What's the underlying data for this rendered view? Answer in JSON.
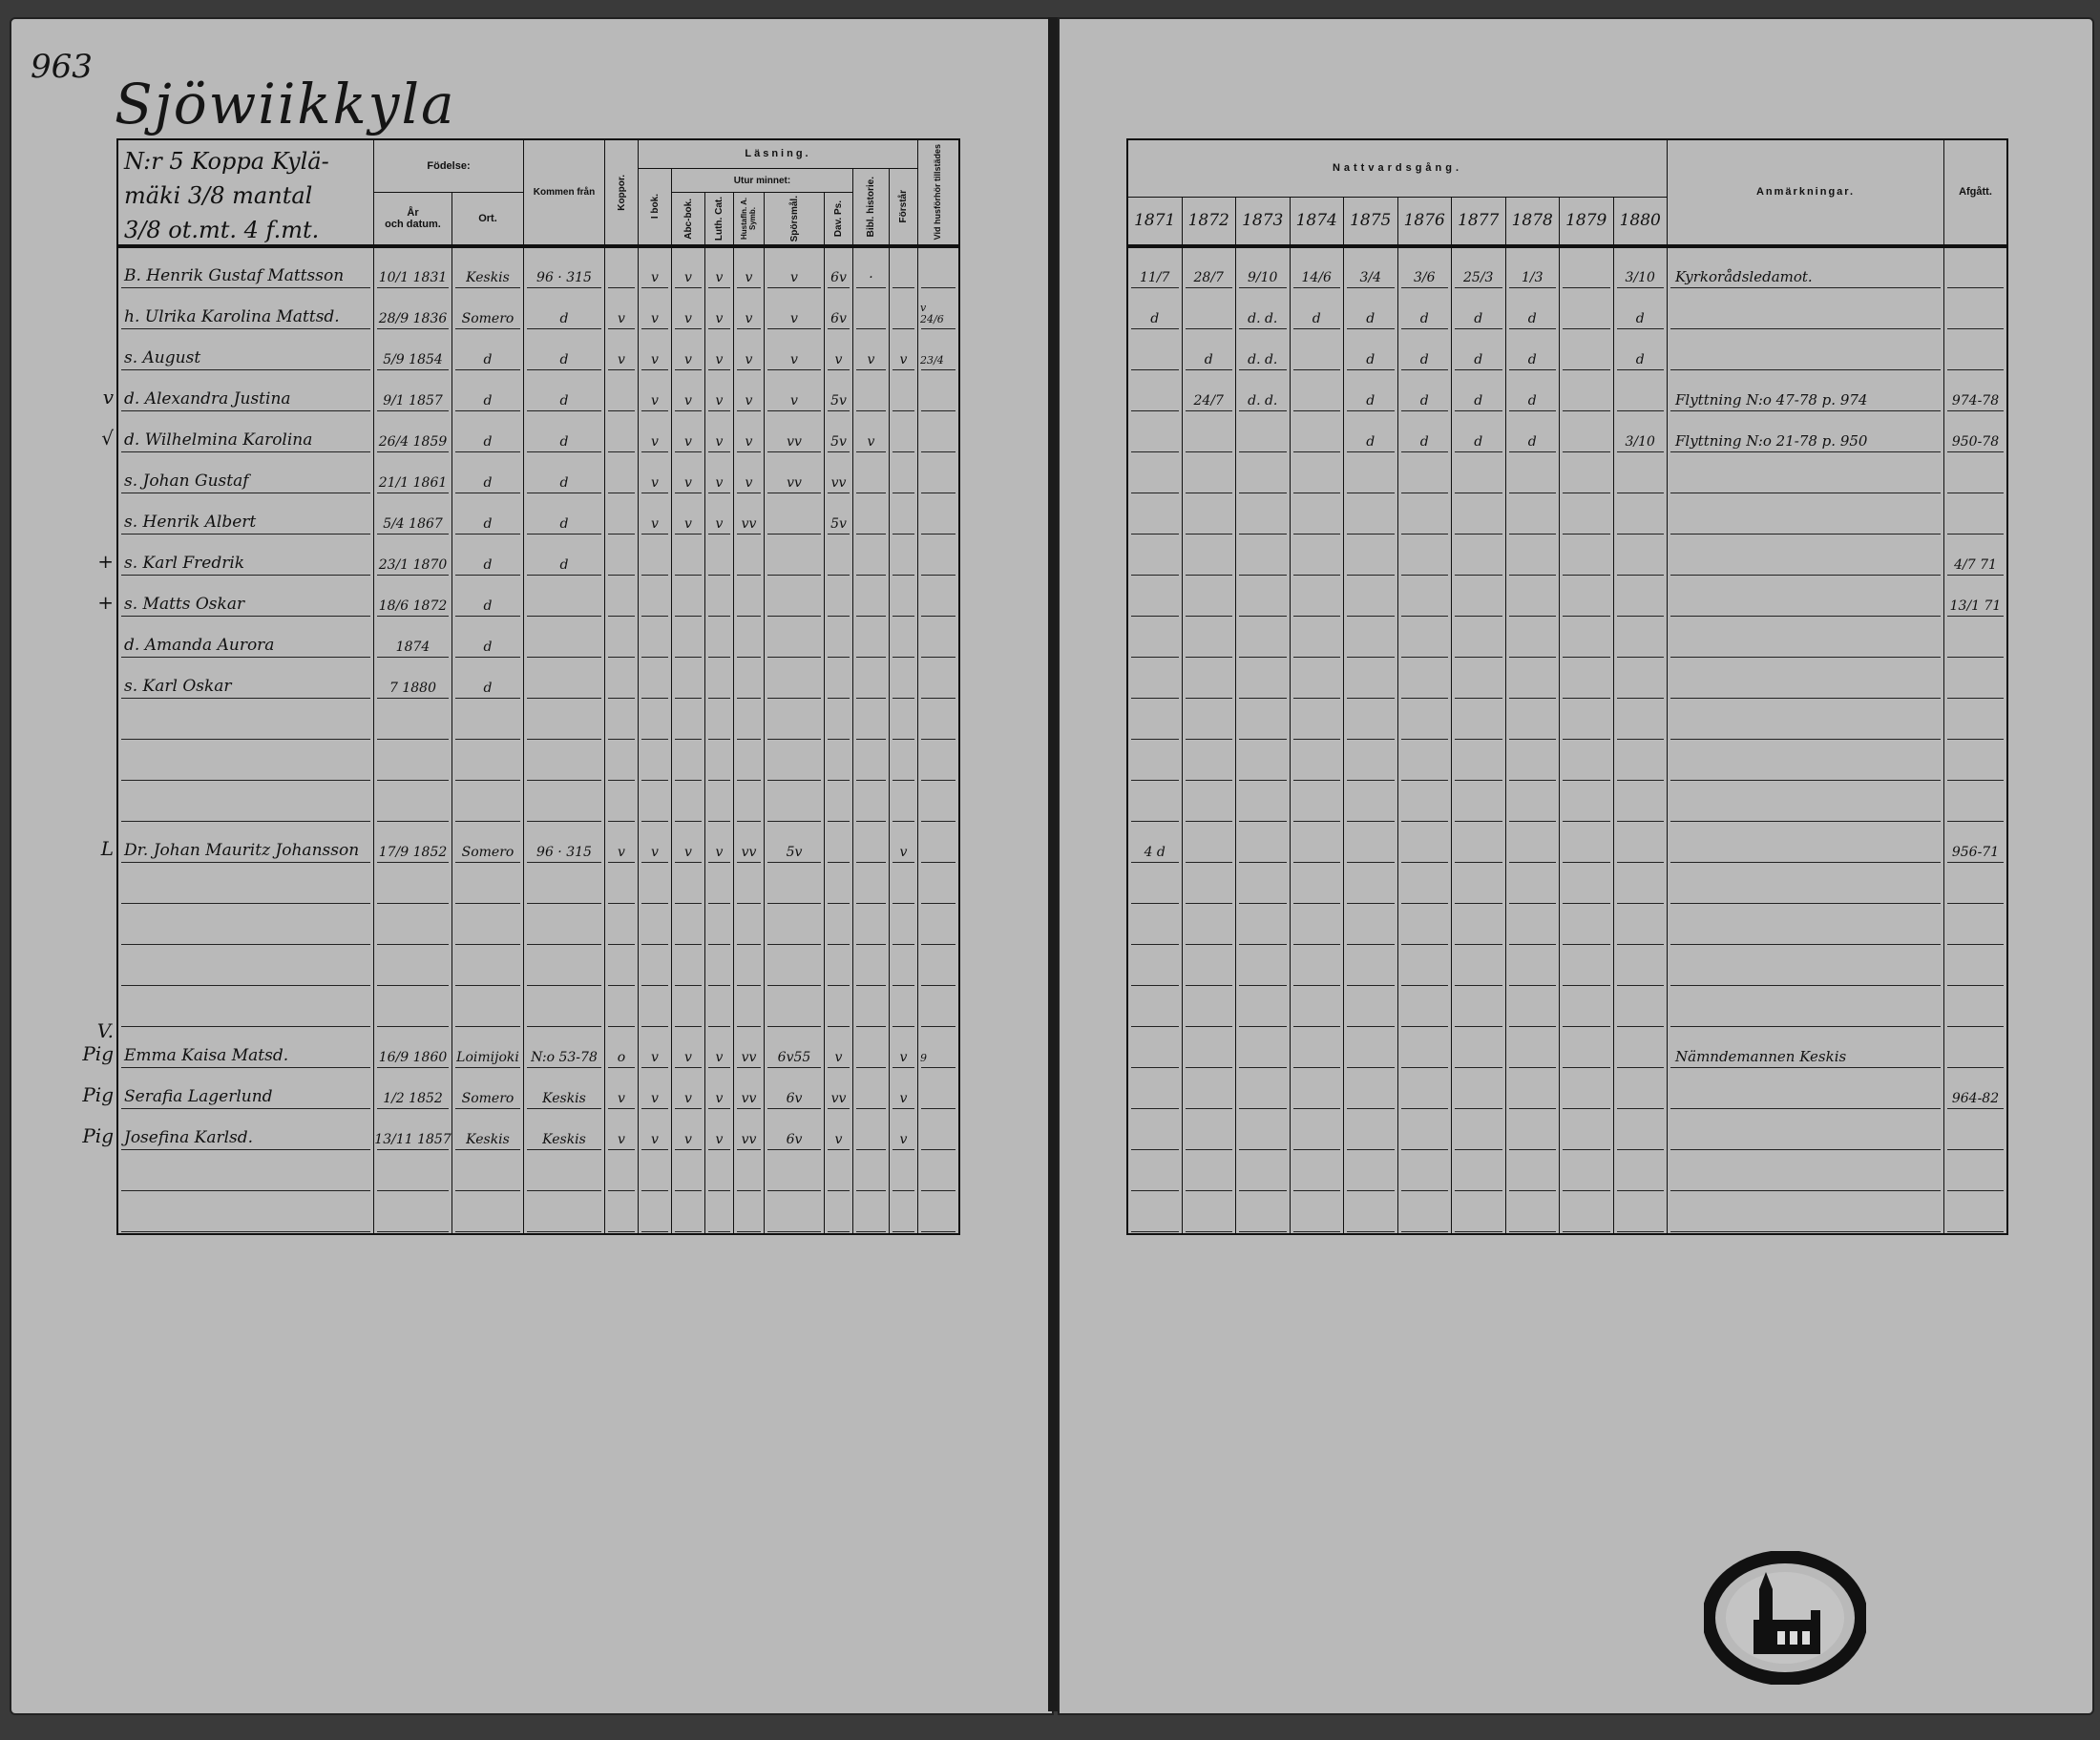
{
  "page_number": "963",
  "village_title": "Sjöwiikkyla",
  "left_header": {
    "location": "N:r 5 Koppa Kylä-\nmäki 3/8 mantal\n3/8 ot.mt.   4 f.mt.",
    "fodelse": "Födelse:",
    "ar": "År\noch datum.",
    "ort": "Ort.",
    "kommen_fran": "Kommen från",
    "koppor": "Koppor.",
    "lasning": "Läsning.",
    "i_bok": "I bok.",
    "utur_minnet": "Utur minnet:",
    "abc_bok": "Abc-bok.",
    "luth_cat": "Luth. Cat.",
    "hist": "Hustafln. A. Symb.",
    "sporsmal": "Spörsmål.",
    "dav_ps": "Dav. Ps.",
    "bibl_historie": "Bibl. historie.",
    "forstar": "Förstår",
    "vid_husforhor": "Vid husförhör tillstädes"
  },
  "right_header": {
    "nattvardsgang": "Nattvardsgång.",
    "years": [
      "1871",
      "1872",
      "1873",
      "1874",
      "1875",
      "1876",
      "1877",
      "1878",
      "1879",
      "1880"
    ],
    "anmarkningar": "Anmärkningar.",
    "afgatt": "Afgått."
  },
  "rows": [
    {
      "row": 0,
      "mark": "",
      "name": "B. Henrik Gustaf Mattsson",
      "birth": "10/1 1831",
      "place": "Keskis",
      "from": "96 · 315",
      "reading": [
        "",
        "v",
        "v",
        "v",
        "v",
        "v",
        "6v",
        "·",
        "",
        "",
        ""
      ],
      "communion": [
        "11/7",
        "28/7",
        "9/10",
        "14/6",
        "3/4",
        "3/6",
        "25/3",
        "1/3",
        "",
        "3/10"
      ],
      "remark": "Kyrkorådsledamot.",
      "departed": ""
    },
    {
      "row": 1,
      "mark": "",
      "name": "h. Ulrika Karolina Mattsd.",
      "birth": "28/9 1836",
      "place": "Somero",
      "from": "d",
      "reading": [
        "v",
        "v",
        "v",
        "v",
        "v",
        "v",
        "6v",
        "",
        "",
        "v",
        "24/6"
      ],
      "communion": [
        "d",
        "",
        "d. d.",
        "d",
        "d",
        "d",
        "d",
        "d",
        "",
        "d"
      ],
      "remark": "",
      "departed": ""
    },
    {
      "row": 2,
      "mark": "",
      "name": "s. August",
      "birth": "5/9 1854",
      "place": "d",
      "from": "d",
      "reading": [
        "v",
        "v",
        "v",
        "v",
        "v",
        "v",
        "v",
        "v",
        "v",
        "",
        "23/4"
      ],
      "communion": [
        "",
        "d",
        "d. d.",
        "",
        "d",
        "d",
        "d",
        "d",
        "",
        "d"
      ],
      "remark": "",
      "departed": ""
    },
    {
      "row": 3,
      "mark": "v",
      "name": "d. Alexandra Justina",
      "birth": "9/1 1857",
      "place": "d",
      "from": "d",
      "reading": [
        "",
        "v",
        "v",
        "v",
        "v",
        "v",
        "5v",
        "",
        "",
        "",
        ""
      ],
      "communion": [
        "",
        "24/7",
        "d. d.",
        "",
        "d",
        "d",
        "d",
        "d",
        "",
        ""
      ],
      "remark": "Flyttning N:o 47-78 p. 974",
      "departed": "974-78"
    },
    {
      "row": 4,
      "mark": "√",
      "name": "d. Wilhelmina Karolina",
      "birth": "26/4 1859",
      "place": "d",
      "from": "d",
      "reading": [
        "",
        "v",
        "v",
        "v",
        "v",
        "vv",
        "5v",
        "v",
        "",
        "",
        ""
      ],
      "communion": [
        "",
        "",
        "",
        "",
        "d",
        "d",
        "d",
        "d",
        "",
        "3/10"
      ],
      "remark": "Flyttning N:o 21-78 p. 950",
      "departed": "950-78"
    },
    {
      "row": 5,
      "mark": "",
      "name": "s. Johan Gustaf",
      "birth": "21/1 1861",
      "place": "d",
      "from": "d",
      "reading": [
        "",
        "v",
        "v",
        "v",
        "v",
        "vv",
        "vv",
        "",
        "",
        "",
        ""
      ],
      "communion": [
        "",
        "",
        "",
        "",
        "",
        "",
        "",
        "",
        "",
        ""
      ],
      "remark": "",
      "departed": ""
    },
    {
      "row": 6,
      "mark": "",
      "name": "s. Henrik Albert",
      "birth": "5/4 1867",
      "place": "d",
      "from": "d",
      "reading": [
        "",
        "v",
        "v",
        "v",
        "vv",
        "",
        "5v",
        "",
        "",
        "",
        ""
      ],
      "communion": [
        "",
        "",
        "",
        "",
        "",
        "",
        "",
        "",
        "",
        ""
      ],
      "remark": "",
      "departed": ""
    },
    {
      "row": 7,
      "mark": "+",
      "name": "s. Karl Fredrik",
      "birth": "23/1 1870",
      "place": "d",
      "from": "d",
      "reading": [
        "",
        "",
        "",
        "",
        "",
        "",
        "",
        "",
        "",
        "",
        ""
      ],
      "communion": [
        "",
        "",
        "",
        "",
        "",
        "",
        "",
        "",
        "",
        ""
      ],
      "remark": "",
      "departed": "4/7 71"
    },
    {
      "row": 8,
      "mark": "+",
      "name": "s. Matts Oskar",
      "birth": "18/6 1872",
      "place": "d",
      "from": "",
      "reading": [
        "",
        "",
        "",
        "",
        "",
        "",
        "",
        "",
        "",
        "",
        ""
      ],
      "communion": [
        "",
        "",
        "",
        "",
        "",
        "",
        "",
        "",
        "",
        ""
      ],
      "remark": "",
      "departed": "13/1 71"
    },
    {
      "row": 9,
      "mark": "",
      "name": "d. Amanda Aurora",
      "birth": "1874",
      "place": "d",
      "from": "",
      "reading": [
        "",
        "",
        "",
        "",
        "",
        "",
        "",
        "",
        "",
        "",
        ""
      ],
      "communion": [
        "",
        "",
        "",
        "",
        "",
        "",
        "",
        "",
        "",
        ""
      ],
      "remark": "",
      "departed": ""
    },
    {
      "row": 10,
      "mark": "",
      "name": "s. Karl Oskar",
      "birth": "7 1880",
      "place": "d",
      "from": "",
      "reading": [
        "",
        "",
        "",
        "",
        "",
        "",
        "",
        "",
        "",
        "",
        ""
      ],
      "communion": [
        "",
        "",
        "",
        "",
        "",
        "",
        "",
        "",
        "",
        ""
      ],
      "remark": "",
      "departed": ""
    },
    {
      "row": 14,
      "mark": "L",
      "name": "Dr. Johan Mauritz Johansson",
      "birth": "17/9 1852",
      "place": "Somero",
      "from": "96 · 315",
      "reading": [
        "v",
        "v",
        "v",
        "v",
        "vv",
        "5v",
        "",
        "",
        "v",
        "",
        ""
      ],
      "communion": [
        "4 d",
        "",
        "",
        "",
        "",
        "",
        "",
        "",
        "",
        ""
      ],
      "remark": "",
      "departed": "956-71"
    },
    {
      "row": 19,
      "mark": "V. Pig",
      "name": "Emma Kaisa Matsd.",
      "birth": "16/9 1860",
      "place": "Loimijoki",
      "from": "N:o 53-78",
      "reading": [
        "o",
        "v",
        "v",
        "v",
        "vv",
        "6v55",
        "v",
        "",
        "v",
        "9",
        ""
      ],
      "communion": [
        "",
        "",
        "",
        "",
        "",
        "",
        "",
        "",
        "",
        ""
      ],
      "remark": "Nämndemannen Keskis",
      "departed": ""
    },
    {
      "row": 20,
      "mark": "Pig",
      "name": "Serafia Lagerlund",
      "birth": "1/2 1852",
      "place": "Somero",
      "from": "Keskis",
      "reading": [
        "v",
        "v",
        "v",
        "v",
        "vv",
        "6v",
        "vv",
        "",
        "v",
        "",
        ""
      ],
      "communion": [
        "",
        "",
        "",
        "",
        "",
        "",
        "",
        "",
        "",
        ""
      ],
      "remark": "",
      "departed": "964-82"
    },
    {
      "row": 21,
      "mark": "Pig",
      "name": "Josefina Karlsd.",
      "birth": "13/11 1857",
      "place": "Keskis",
      "from": "Keskis",
      "reading": [
        "v",
        "v",
        "v",
        "v",
        "vv",
        "6v",
        "v",
        "",
        "v",
        "",
        ""
      ],
      "communion": [
        "",
        "",
        "",
        "",
        "",
        "",
        "",
        "",
        "",
        ""
      ],
      "remark": "",
      "departed": ""
    }
  ],
  "total_rows": 24,
  "stamp": {
    "type": "circular archive seal with church"
  }
}
